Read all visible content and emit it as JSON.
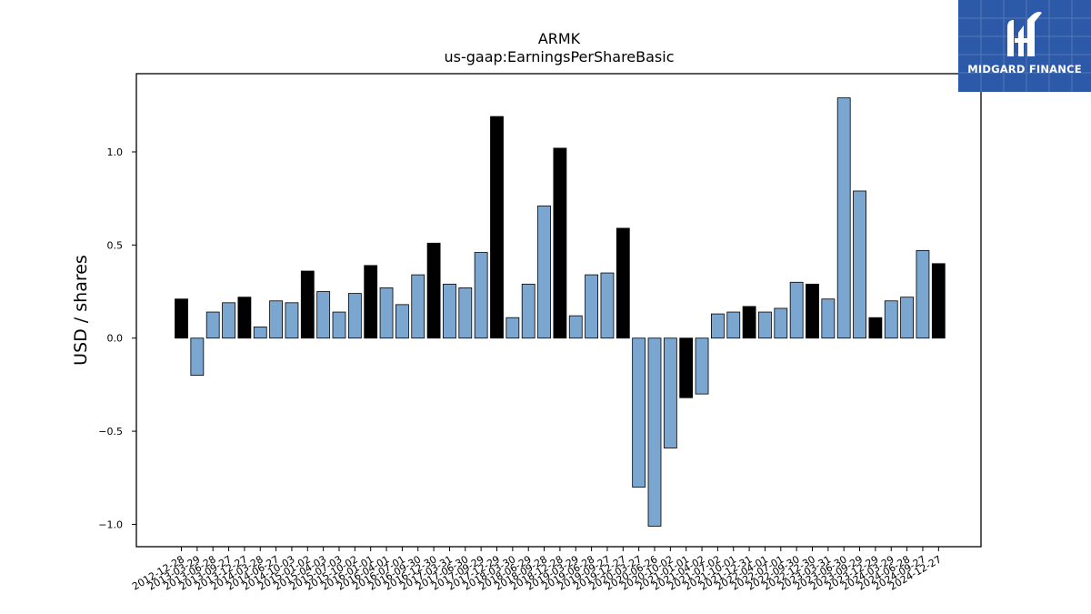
{
  "chart_data": {
    "type": "bar",
    "title": "ARMK",
    "subtitle": "us-gaap:EarningsPerShareBasic",
    "xlabel": "",
    "ylabel": "USD / shares",
    "ylim": [
      -1.12,
      1.42
    ],
    "yticks": [
      -1.0,
      -0.5,
      0.0,
      0.5,
      1.0
    ],
    "ytick_labels": [
      "−1.0",
      "−0.5",
      "0.0",
      "0.5",
      "1.0"
    ],
    "grid": false,
    "legend": "none",
    "colors": {
      "quarter": "#7aa6cf",
      "annual": "#000000",
      "edge": "#000000"
    },
    "categories": [
      "2012-12-28",
      "2013-03-29",
      "2013-06-28",
      "2013-09-27",
      "2013-12-27",
      "2014-03-28",
      "2014-06-27",
      "2014-10-03",
      "2015-01-02",
      "2015-04-03",
      "2015-07-03",
      "2015-10-02",
      "2016-01-01",
      "2016-04-01",
      "2016-07-01",
      "2016-09-30",
      "2016-12-30",
      "2017-03-31",
      "2017-06-30",
      "2017-09-29",
      "2017-12-29",
      "2018-03-30",
      "2018-06-29",
      "2018-09-28",
      "2018-12-28",
      "2019-03-29",
      "2019-06-28",
      "2019-09-27",
      "2019-12-27",
      "2020-03-27",
      "2020-06-26",
      "2020-10-02",
      "2021-01-01",
      "2021-04-02",
      "2021-07-02",
      "2021-10-01",
      "2021-12-31",
      "2022-04-01",
      "2022-07-01",
      "2022-09-30",
      "2022-12-30",
      "2023-03-31",
      "2023-06-30",
      "2023-09-29",
      "2023-12-29",
      "2024-03-29",
      "2024-06-28",
      "2024-09-27",
      "2024-12-27"
    ],
    "values": [
      0.21,
      -0.2,
      0.14,
      0.19,
      0.22,
      0.06,
      0.2,
      0.19,
      0.36,
      0.25,
      0.14,
      0.24,
      0.39,
      0.27,
      0.18,
      0.34,
      0.51,
      0.29,
      0.27,
      0.46,
      1.19,
      0.11,
      0.29,
      0.71,
      1.02,
      0.12,
      0.34,
      0.35,
      0.59,
      -0.8,
      -1.01,
      -0.59,
      -0.32,
      -0.3,
      0.13,
      0.14,
      0.17,
      0.14,
      0.16,
      0.3,
      0.29,
      0.21,
      1.29,
      0.79,
      0.11,
      0.2,
      0.22,
      0.47,
      0.4
    ],
    "annual_flags": [
      1,
      0,
      0,
      0,
      1,
      0,
      0,
      0,
      1,
      0,
      0,
      0,
      1,
      0,
      0,
      0,
      1,
      0,
      0,
      0,
      1,
      0,
      0,
      0,
      1,
      0,
      0,
      0,
      1,
      0,
      0,
      0,
      1,
      0,
      0,
      0,
      1,
      0,
      0,
      0,
      1,
      0,
      0,
      0,
      1,
      0,
      0,
      0,
      1
    ]
  },
  "logo": {
    "text": "MIDGARD FINANCE",
    "icon": "midgard-m-logo-icon",
    "background": "#2d5aa8"
  }
}
